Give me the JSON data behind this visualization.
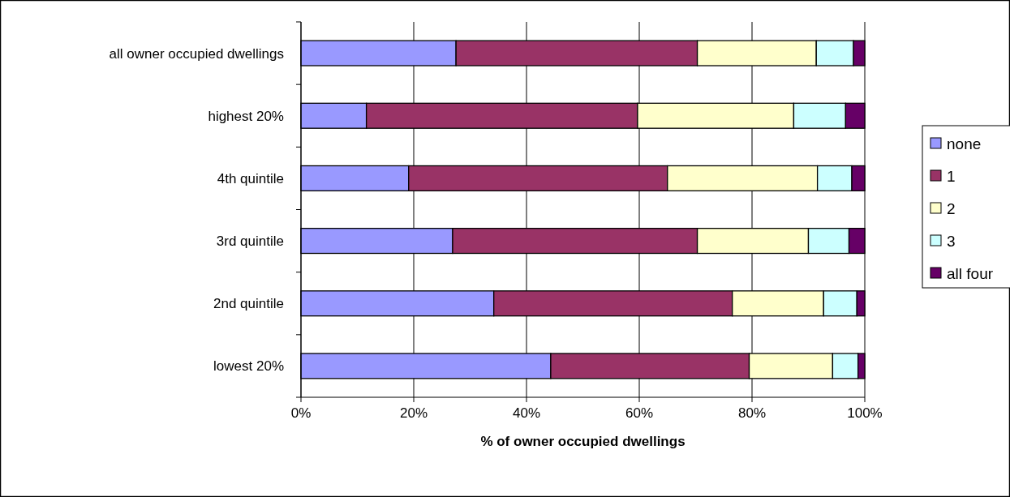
{
  "chart_data": {
    "type": "bar",
    "orientation": "horizontal",
    "stacked": true,
    "xlabel": "% of owner occupied dwellings",
    "categories": [
      "all owner occupied dwellings",
      "highest 20%",
      "4th quintile",
      "3rd quintile",
      "2nd quintile",
      "lowest 20%"
    ],
    "series": [
      {
        "name": "none",
        "color": "#9999ff",
        "values": [
          27.5,
          11.6,
          19.1,
          26.9,
          34.2,
          44.3
        ]
      },
      {
        "name": "1",
        "color": "#993366",
        "values": [
          42.8,
          48.1,
          45.9,
          43.4,
          42.3,
          35.2
        ]
      },
      {
        "name": "2",
        "color": "#ffffcc",
        "values": [
          21.1,
          27.7,
          26.6,
          19.7,
          16.2,
          14.8
        ]
      },
      {
        "name": "3",
        "color": "#ccffff",
        "values": [
          6.6,
          9.2,
          6.1,
          7.2,
          5.9,
          4.5
        ]
      },
      {
        "name": "all four",
        "color": "#660066",
        "values": [
          2.0,
          3.4,
          2.3,
          2.8,
          1.4,
          1.2
        ]
      }
    ],
    "xlim": [
      0,
      100
    ],
    "xticks": [
      {
        "value": 0,
        "label": "0%"
      },
      {
        "value": 20,
        "label": "20%"
      },
      {
        "value": 40,
        "label": "40%"
      },
      {
        "value": 60,
        "label": "60%"
      },
      {
        "value": 80,
        "label": "80%"
      },
      {
        "value": 100,
        "label": "100%"
      }
    ],
    "grid": "x",
    "legend": "right"
  }
}
